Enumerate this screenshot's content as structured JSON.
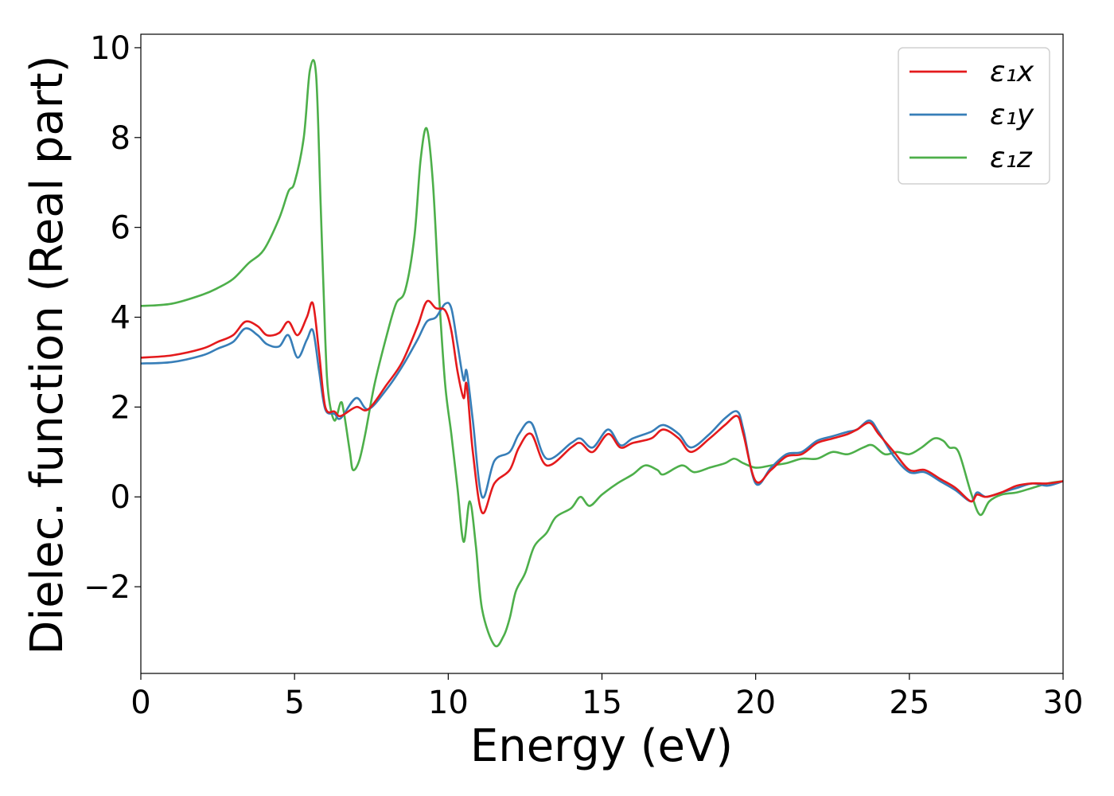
{
  "chart_data": {
    "type": "line",
    "title": "",
    "xlabel": "Energy (eV)",
    "ylabel": "Dielec. function (Real part)",
    "xlim": [
      0,
      30
    ],
    "ylim": [
      -3.93,
      10.3
    ],
    "xticks": [
      0,
      5,
      10,
      15,
      20,
      25,
      30
    ],
    "xtick_labels": [
      "0",
      "5",
      "10",
      "15",
      "20",
      "25",
      "30"
    ],
    "yticks": [
      -2,
      0,
      2,
      4,
      6,
      8,
      10
    ],
    "ytick_labels": [
      "−2",
      "0",
      "2",
      "4",
      "6",
      "8",
      "10"
    ],
    "grid": false,
    "legend_position": "top-right",
    "series": [
      {
        "name": "ε₁x",
        "color": "#e41a1c",
        "x": [
          0,
          1,
          2,
          2.5,
          3,
          3.4,
          3.8,
          4.1,
          4.5,
          4.8,
          5.1,
          5.4,
          5.6,
          5.8,
          6.0,
          6.3,
          6.5,
          7.0,
          7.4,
          8.0,
          8.5,
          9.0,
          9.3,
          9.6,
          9.9,
          10.1,
          10.3,
          10.5,
          10.6,
          10.8,
          11.1,
          11.5,
          12.0,
          12.3,
          12.7,
          13.2,
          14.0,
          14.3,
          14.7,
          15.2,
          15.6,
          16.0,
          16.6,
          17.0,
          17.5,
          17.9,
          18.5,
          19.0,
          19.4,
          19.6,
          20.0,
          20.5,
          21.0,
          21.5,
          22.0,
          22.5,
          23.0,
          23.3,
          23.7,
          24.0,
          24.5,
          25.0,
          25.5,
          26.0,
          26.5,
          27.0,
          27.2,
          27.5,
          28.0,
          28.5,
          29.0,
          29.5,
          30
        ],
        "y": [
          3.1,
          3.15,
          3.3,
          3.45,
          3.6,
          3.9,
          3.8,
          3.6,
          3.65,
          3.9,
          3.6,
          4.0,
          4.3,
          3.2,
          2.0,
          1.9,
          1.8,
          2.0,
          1.95,
          2.5,
          3.0,
          3.8,
          4.35,
          4.2,
          4.15,
          3.7,
          2.8,
          2.2,
          2.5,
          1.0,
          -0.35,
          0.3,
          0.6,
          1.1,
          1.4,
          0.7,
          1.1,
          1.2,
          1.0,
          1.4,
          1.1,
          1.2,
          1.3,
          1.5,
          1.3,
          1.0,
          1.3,
          1.6,
          1.8,
          1.4,
          0.35,
          0.6,
          0.9,
          0.95,
          1.2,
          1.3,
          1.4,
          1.5,
          1.65,
          1.4,
          1.0,
          0.6,
          0.6,
          0.4,
          0.2,
          -0.1,
          0.05,
          0.0,
          0.1,
          0.25,
          0.3,
          0.3,
          0.35
        ]
      },
      {
        "name": "ε₁y",
        "color": "#377eb8",
        "x": [
          0,
          1,
          2,
          2.5,
          3,
          3.4,
          3.8,
          4.1,
          4.5,
          4.8,
          5.1,
          5.4,
          5.6,
          5.8,
          6.0,
          6.3,
          6.5,
          7.0,
          7.4,
          8.0,
          8.5,
          9.0,
          9.3,
          9.6,
          9.9,
          10.1,
          10.3,
          10.5,
          10.6,
          10.8,
          11.1,
          11.5,
          12.0,
          12.3,
          12.7,
          13.2,
          14.0,
          14.3,
          14.7,
          15.2,
          15.6,
          16.0,
          16.6,
          17.0,
          17.5,
          17.9,
          18.5,
          19.0,
          19.4,
          19.6,
          20.0,
          20.5,
          21.0,
          21.5,
          22.0,
          22.5,
          23.0,
          23.3,
          23.7,
          24.0,
          24.5,
          25.0,
          25.5,
          26.0,
          26.5,
          27.0,
          27.2,
          27.5,
          28.0,
          28.5,
          29.0,
          29.5,
          30
        ],
        "y": [
          2.97,
          3.0,
          3.15,
          3.3,
          3.45,
          3.75,
          3.6,
          3.4,
          3.35,
          3.6,
          3.1,
          3.5,
          3.7,
          2.8,
          1.95,
          1.85,
          1.75,
          2.2,
          1.95,
          2.4,
          2.9,
          3.5,
          3.9,
          4.0,
          4.3,
          4.2,
          3.4,
          2.6,
          2.8,
          1.7,
          0.0,
          0.8,
          1.0,
          1.4,
          1.65,
          0.85,
          1.2,
          1.3,
          1.1,
          1.5,
          1.15,
          1.3,
          1.45,
          1.6,
          1.4,
          1.1,
          1.4,
          1.75,
          1.9,
          1.5,
          0.3,
          0.65,
          0.95,
          1.0,
          1.25,
          1.35,
          1.45,
          1.5,
          1.7,
          1.45,
          0.9,
          0.55,
          0.55,
          0.35,
          0.15,
          -0.1,
          0.1,
          0.0,
          0.1,
          0.2,
          0.3,
          0.25,
          0.35
        ]
      },
      {
        "name": "ε₁z",
        "color": "#4daf4a",
        "x": [
          0,
          1,
          2,
          2.5,
          3,
          3.5,
          4.0,
          4.5,
          4.8,
          5.0,
          5.3,
          5.5,
          5.7,
          5.85,
          6.0,
          6.1,
          6.3,
          6.5,
          6.6,
          6.8,
          6.9,
          7.1,
          7.3,
          7.6,
          8.0,
          8.3,
          8.6,
          8.9,
          9.1,
          9.3,
          9.5,
          9.7,
          9.9,
          10.1,
          10.3,
          10.5,
          10.7,
          10.9,
          11.1,
          11.5,
          11.8,
          12.0,
          12.2,
          12.5,
          12.8,
          13.2,
          13.5,
          14.0,
          14.3,
          14.6,
          15.0,
          15.5,
          16.0,
          16.4,
          16.8,
          17.0,
          17.6,
          18.0,
          18.5,
          19.0,
          19.3,
          19.6,
          20.0,
          20.5,
          21.0,
          21.5,
          22.0,
          22.5,
          23.0,
          23.5,
          23.8,
          24.2,
          24.6,
          25.0,
          25.4,
          25.8,
          26.1,
          26.3,
          26.6,
          27.0,
          27.3,
          27.6,
          28.0,
          28.5,
          29.0,
          29.5,
          30
        ],
        "y": [
          4.25,
          4.3,
          4.5,
          4.65,
          4.85,
          5.2,
          5.5,
          6.2,
          6.8,
          7.0,
          8.0,
          9.5,
          9.4,
          6.5,
          3.5,
          2.3,
          1.7,
          2.1,
          1.9,
          1.0,
          0.6,
          0.8,
          1.4,
          2.5,
          3.6,
          4.3,
          4.6,
          5.8,
          7.5,
          8.2,
          7.0,
          4.5,
          2.5,
          1.4,
          0.2,
          -1.0,
          -0.1,
          -1.1,
          -2.5,
          -3.3,
          -3.1,
          -2.7,
          -2.1,
          -1.7,
          -1.1,
          -0.8,
          -0.45,
          -0.25,
          0.0,
          -0.2,
          0.05,
          0.3,
          0.5,
          0.7,
          0.6,
          0.5,
          0.7,
          0.55,
          0.65,
          0.75,
          0.85,
          0.75,
          0.65,
          0.7,
          0.75,
          0.85,
          0.85,
          1.0,
          0.95,
          1.1,
          1.15,
          0.95,
          1.0,
          0.95,
          1.1,
          1.3,
          1.25,
          1.1,
          1.0,
          0.1,
          -0.4,
          -0.1,
          0.05,
          0.1,
          0.2,
          0.3,
          0.35
        ]
      }
    ]
  }
}
